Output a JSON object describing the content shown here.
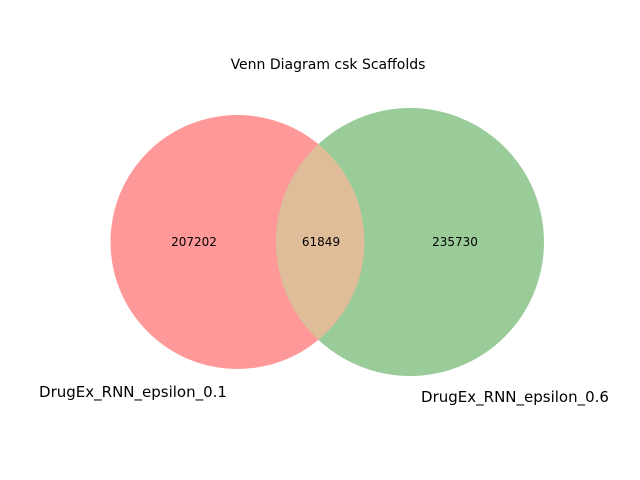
{
  "figure": {
    "title": "Venn Diagram csk Scaffolds"
  },
  "chart_data": {
    "type": "venn",
    "title": "Venn Diagram csk Scaffolds",
    "sets": [
      {
        "name": "DrugEx_RNN_epsilon_0.1",
        "only_count": "207202",
        "color": "#ff9999"
      },
      {
        "name": "DrugEx_RNN_epsilon_0.6",
        "only_count": "235730",
        "color": "#99cc99"
      }
    ],
    "intersection": {
      "count": "61849",
      "color": "#dfbd99"
    }
  }
}
